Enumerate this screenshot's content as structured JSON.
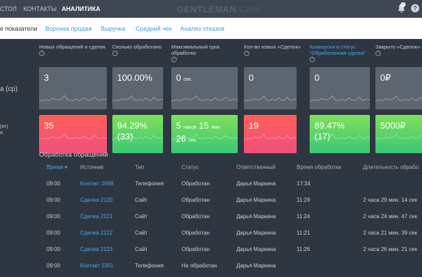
{
  "topbar": {
    "nav": [
      "СТОЛ",
      "КОНТАКТЫ",
      "АНАЛИТИКА"
    ],
    "active": 2,
    "logo_main": "GENTLEMAN",
    "logo_sub": "CRM",
    "notifications": "2",
    "help": "?"
  },
  "subnav": {
    "tabs": [
      "е показатели",
      "Воронка продаж",
      "Выручка",
      "Средний чек",
      "Анализ отказов"
    ]
  },
  "side_labels": {
    "row1": "а (ср)",
    "row2a": "(ет)",
    "row2b": "а"
  },
  "metrics": [
    {
      "label": "Новых обращений и сделок",
      "row1": "3",
      "row2": "35",
      "row2_status": "bad"
    },
    {
      "label": "Сколько обработано",
      "row1": "100.00%",
      "row2": "94.29%",
      "row2_line2": "(33)",
      "row2_status": "good"
    },
    {
      "label": "Максимальный срок обработки",
      "row1": "0",
      "row1_unit": "сек.",
      "row2": "5",
      "row2_u1": "часов",
      "row2_b": "15",
      "row2_u2": "мин.",
      "row2_line2": "26",
      "row2_u3": "сек.",
      "row2_status": "good"
    },
    {
      "label": "Кол-во новых «Сделок»",
      "row1": "0",
      "row2": "19",
      "row2_status": "bad"
    },
    {
      "label": "Конверсия в статус \"Обработанная сделка\"",
      "row1": "0",
      "row2": "89.47%",
      "row2_line2": "(17)",
      "row2_status": "good",
      "highlight": true
    },
    {
      "label": "Закрыто «Сделок» на",
      "row1": "0₽",
      "row2": "5000₽",
      "row2_status": "good"
    }
  ],
  "table": {
    "title": "Обработка обращений",
    "columns": [
      "Время ▾",
      "Источник",
      "Тип",
      "Статус",
      "Ответственный",
      "Время обработки",
      "Длительность обрабо"
    ],
    "rows": [
      [
        "09:00",
        "Контакт 2698",
        "Телефония",
        "Обработан",
        "Дарья Маркина",
        "17:34",
        ""
      ],
      [
        "09:00",
        "Сделка 2120",
        "Сайт",
        "Обработан",
        "Дарья Маркина",
        "11:29",
        "2 часа 29 мин. 14 сек"
      ],
      [
        "09:00",
        "Сделка 2121",
        "Сайт",
        "Обработан",
        "Дарья Маркина",
        "11:24",
        "2 часа 24 мин. 47 сек"
      ],
      [
        "09:00",
        "Сделка 2122",
        "Сайт",
        "Обработан",
        "Дарья Маркина",
        "11:21",
        "2 часа 21 мин. 39 сек"
      ],
      [
        "09:00",
        "Сделка 2123",
        "Сайт",
        "Обработан",
        "Дарья Маркина",
        "11:26",
        "2 часа 26 мин. 21 сек"
      ],
      [
        "09:00",
        "Контакт 2351",
        "Телефония",
        "Не обработан",
        "Дарья Маркина",
        "",
        ""
      ]
    ]
  },
  "colors": {
    "bad": "#ff5f58",
    "good": "#5fd46a",
    "link": "#4aa9e0",
    "bg": "#2e3641"
  }
}
